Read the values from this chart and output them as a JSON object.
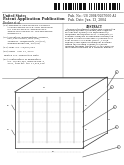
{
  "bg_color": "#ffffff",
  "barcode_color": "#111111",
  "text_color": "#222222",
  "light_gray": "#aaaaaa",
  "mid_gray": "#666666",
  "diagram_color": "#333333",
  "border_color": "#888888",
  "header_line1": "United States",
  "header_line2": "Patent Application Publication",
  "header_line3": "Becker et al.",
  "pub_number": "US 2004/0267660 A1",
  "pub_date": "Jun. 13, 2004",
  "right_col_top": "ABSTRACT",
  "abstract_text": "A thermal treatment system and associated methods provide a reliable and compact system that subjects an instrument to uniformly distributed heat. A plurality of heating elements is uniformly distributed around a central axis and is coupled to a heat source via a fluid circuit. A rack engages and aligns instrument portions within the heating volume.",
  "diagram_present": true
}
